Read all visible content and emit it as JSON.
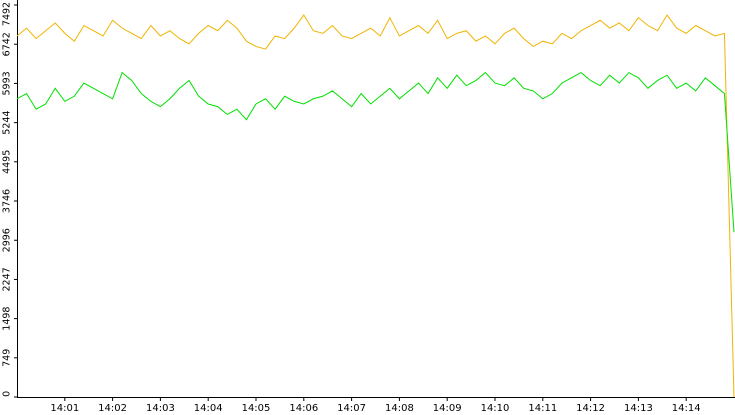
{
  "chart_data": {
    "type": "line",
    "x": [
      840,
      840.2,
      840.4,
      840.6,
      840.8,
      841,
      841.2,
      841.4,
      841.6,
      841.8,
      842,
      842.2,
      842.4,
      842.6,
      842.8,
      843,
      843.2,
      843.4,
      843.6,
      843.8,
      844,
      844.2,
      844.4,
      844.6,
      844.8,
      845,
      845.2,
      845.4,
      845.6,
      845.8,
      846,
      846.2,
      846.4,
      846.6,
      846.8,
      847,
      847.2,
      847.4,
      847.6,
      847.8,
      848,
      848.2,
      848.4,
      848.6,
      848.8,
      849,
      849.2,
      849.4,
      849.6,
      849.8,
      850,
      850.2,
      850.4,
      850.6,
      850.8,
      851,
      851.2,
      851.4,
      851.6,
      851.8,
      852,
      852.2,
      852.4,
      852.6,
      852.8,
      853,
      853.2,
      853.4,
      853.6,
      853.8,
      854,
      854.2,
      854.4,
      854.6,
      854.8,
      855
    ],
    "series": [
      {
        "color": "#f0b400",
        "values": [
          6900,
          7050,
          6850,
          7000,
          7150,
          6950,
          6800,
          7100,
          7000,
          6900,
          7200,
          7050,
          6950,
          6850,
          7100,
          6900,
          7000,
          6850,
          6750,
          6950,
          7100,
          7000,
          7200,
          7050,
          6800,
          6700,
          6650,
          6900,
          6850,
          7050,
          7300,
          7000,
          6950,
          7100,
          6900,
          6850,
          6950,
          7050,
          6900,
          7250,
          6900,
          7000,
          7100,
          6950,
          7200,
          6850,
          6950,
          7000,
          6800,
          6900,
          6750,
          6950,
          7050,
          6850,
          6700,
          6800,
          6750,
          6950,
          6850,
          7000,
          7100,
          7200,
          7050,
          7150,
          7000,
          7250,
          7100,
          7000,
          7300,
          7050,
          6950,
          7100,
          7000,
          6900,
          6950,
          0
        ]
      },
      {
        "color": "#00e000",
        "values": [
          5700,
          5800,
          5500,
          5600,
          5900,
          5650,
          5750,
          6000,
          5900,
          5800,
          5700,
          6200,
          6050,
          5800,
          5650,
          5550,
          5700,
          5900,
          6050,
          5750,
          5600,
          5550,
          5400,
          5500,
          5300,
          5600,
          5700,
          5500,
          5750,
          5650,
          5600,
          5700,
          5750,
          5850,
          5700,
          5550,
          5800,
          5600,
          5750,
          5900,
          5700,
          5850,
          6000,
          5800,
          6100,
          5900,
          6150,
          5950,
          6050,
          6200,
          6000,
          5950,
          6100,
          5900,
          5850,
          5700,
          5800,
          6000,
          6100,
          6200,
          6050,
          5950,
          6150,
          6000,
          6200,
          6100,
          5900,
          6050,
          6150,
          5900,
          6000,
          5850,
          6100,
          5950,
          5800,
          3150
        ]
      }
    ],
    "xlim": [
      840,
      855
    ],
    "xticks": [
      {
        "value": 841,
        "label": "14:01"
      },
      {
        "value": 842,
        "label": "14:02"
      },
      {
        "value": 843,
        "label": "14:03"
      },
      {
        "value": 844,
        "label": "14:04"
      },
      {
        "value": 845,
        "label": "14:05"
      },
      {
        "value": 846,
        "label": "14:06"
      },
      {
        "value": 847,
        "label": "14:07"
      },
      {
        "value": 848,
        "label": "14:08"
      },
      {
        "value": 849,
        "label": "14:09"
      },
      {
        "value": 850,
        "label": "14:10"
      },
      {
        "value": 851,
        "label": "14:11"
      },
      {
        "value": 852,
        "label": "14:12"
      },
      {
        "value": 853,
        "label": "14:13"
      },
      {
        "value": 854,
        "label": "14:14"
      }
    ],
    "ylim": [
      0,
      7492
    ],
    "yticks": [
      0,
      749,
      1498,
      2247,
      2996,
      3746,
      4495,
      5244,
      5993,
      6742,
      7492
    ]
  }
}
